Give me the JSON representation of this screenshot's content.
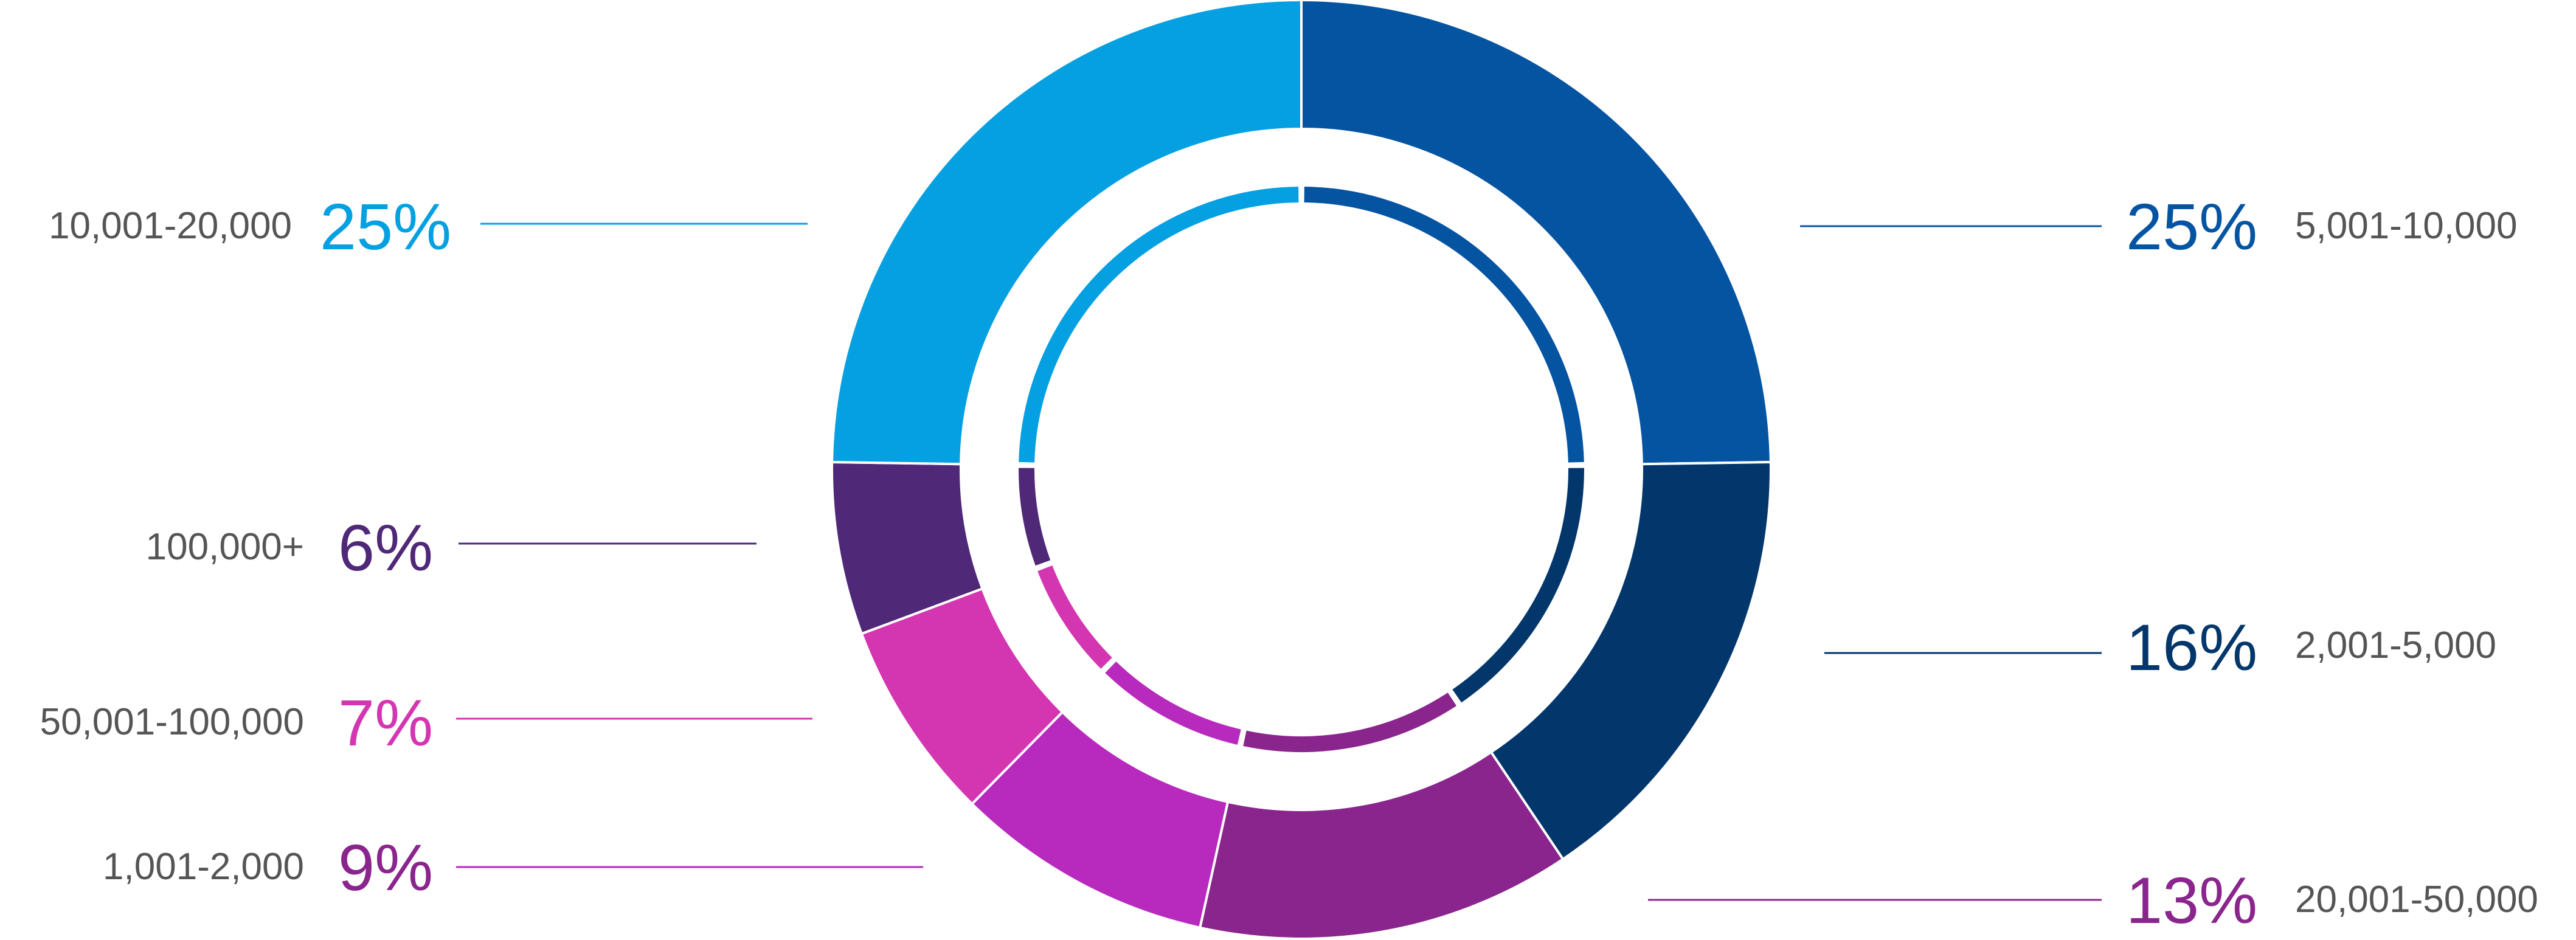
{
  "chart_data": {
    "type": "pie",
    "variant": "donut",
    "title": "",
    "slices": [
      {
        "label": "5,001-10,000",
        "value": 25,
        "value_label": "25%",
        "color": "#0554a2"
      },
      {
        "label": "2,001-5,000",
        "value": 16,
        "value_label": "16%",
        "color": "#03376b"
      },
      {
        "label": "20,001-50,000",
        "value": 13,
        "value_label": "13%",
        "color": "#8a258d"
      },
      {
        "label": "1,001-2,000",
        "value": 9,
        "value_label": "9%",
        "color": "#b82abe"
      },
      {
        "label": "50,001-100,000",
        "value": 7,
        "value_label": "7%",
        "color": "#d436b2"
      },
      {
        "label": "100,000+",
        "value": 6,
        "value_label": "6%",
        "color": "#4f2878"
      },
      {
        "label": "10,001-20,000",
        "value": 25,
        "value_label": "25%",
        "color": "#05a0e1"
      }
    ],
    "legend": "none",
    "data_labels": "outside with leader lines"
  }
}
